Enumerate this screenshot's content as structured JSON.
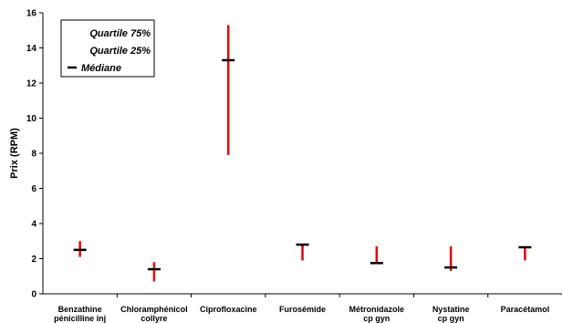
{
  "chart_data": {
    "type": "range",
    "ylabel": "Prix (RPM)",
    "xlabel": "",
    "ylim": [
      0,
      16
    ],
    "yticks": [
      0,
      2,
      4,
      6,
      8,
      10,
      12,
      14,
      16
    ],
    "grid": false,
    "legend_position": "top-left",
    "legend": {
      "q75": "Quartile 75%",
      "q25": "Quartile 25%",
      "median": "Médiane"
    },
    "colors": {
      "range": "#e8000b",
      "median": "#000000"
    },
    "categories": [
      {
        "label": [
          "Benzathine",
          "pénicilline inj"
        ],
        "q25": 2.1,
        "q75": 3.0,
        "median": 2.5
      },
      {
        "label": [
          "Chloramphénicol",
          "collyre"
        ],
        "q25": 0.7,
        "q75": 1.8,
        "median": 1.4
      },
      {
        "label": [
          "Ciprofloxacine"
        ],
        "q25": 7.9,
        "q75": 15.3,
        "median": 13.3
      },
      {
        "label": [
          "Furosémide"
        ],
        "q25": 1.9,
        "q75": 2.8,
        "median": 2.8
      },
      {
        "label": [
          "Métronidazole",
          "cp gyn"
        ],
        "q25": 1.7,
        "q75": 2.7,
        "median": 1.75
      },
      {
        "label": [
          "Nystatine",
          "cp gyn"
        ],
        "q25": 1.3,
        "q75": 2.7,
        "median": 1.5
      },
      {
        "label": [
          "Paracétamol"
        ],
        "q25": 1.9,
        "q75": 2.7,
        "median": 2.65
      }
    ]
  }
}
